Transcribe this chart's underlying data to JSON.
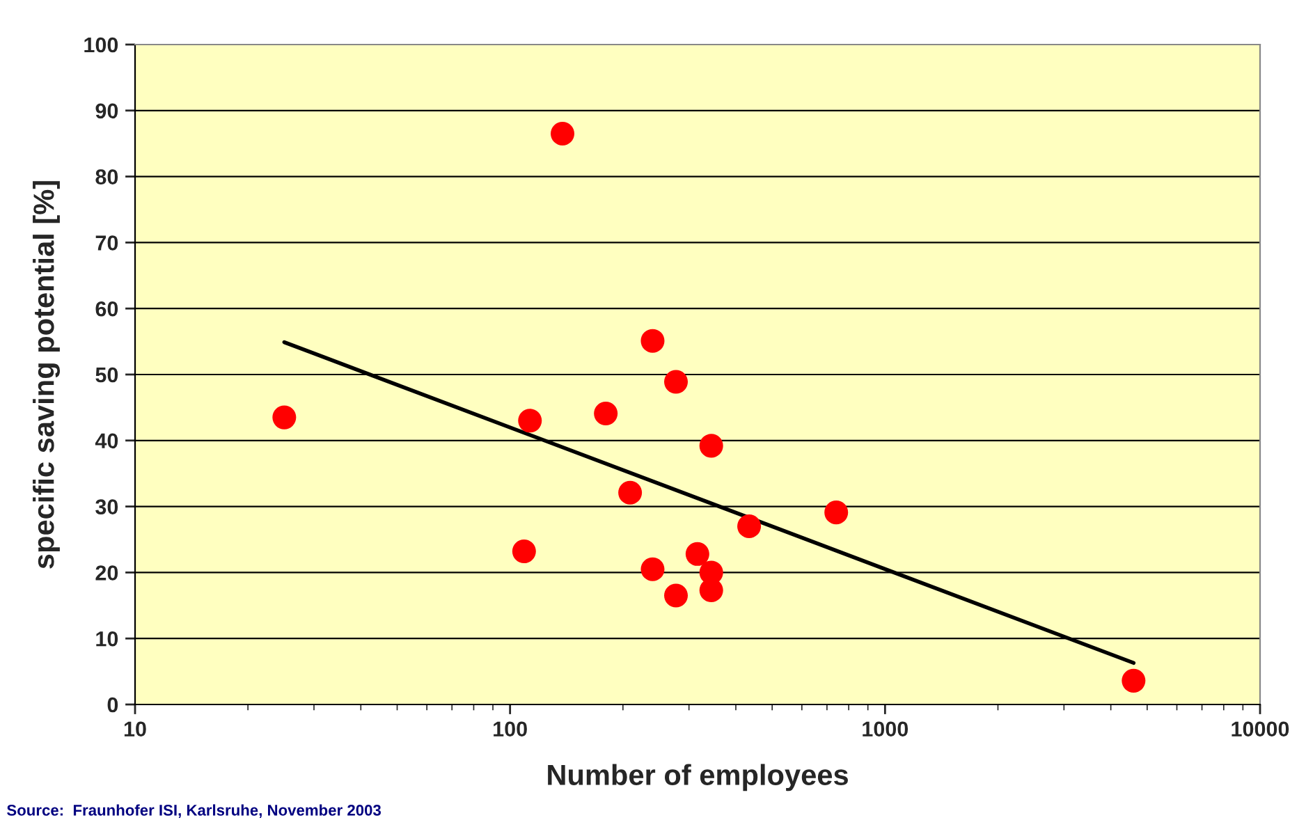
{
  "chart_data": {
    "type": "scatter",
    "xlabel": "Number of employees",
    "ylabel": "specific saving potential [%]",
    "log": "x",
    "xlim": [
      10,
      10000
    ],
    "xticks": [
      10,
      100,
      1000,
      {
        "value": 10000,
        "label": "10000"
      }
    ],
    "ylim": [
      0,
      100
    ],
    "yticks": [
      0,
      10,
      20,
      30,
      40,
      50,
      60,
      70,
      80,
      90,
      100
    ],
    "grid": "y",
    "series": [
      {
        "marker": "circle",
        "color": "#ff0000",
        "x": [
          25,
          138,
          109,
          113,
          180,
          209,
          240,
          240,
          277,
          277,
          316,
          344,
          344,
          344,
          434,
          741,
          4600
        ],
        "values": [
          43.5,
          86.5,
          23.2,
          43.0,
          44.1,
          32.1,
          55.1,
          20.5,
          48.9,
          16.5,
          22.8,
          39.2,
          20.0,
          17.3,
          27.0,
          29.1,
          3.6
        ]
      },
      {
        "type": "line",
        "marker": "none",
        "color": "#000000",
        "x": [
          25,
          4600
        ],
        "values": [
          54.9,
          6.3
        ]
      }
    ],
    "annotations": [
      "Source:  Fraunhofer ISI, Karlsruhe, November 2003"
    ]
  }
}
